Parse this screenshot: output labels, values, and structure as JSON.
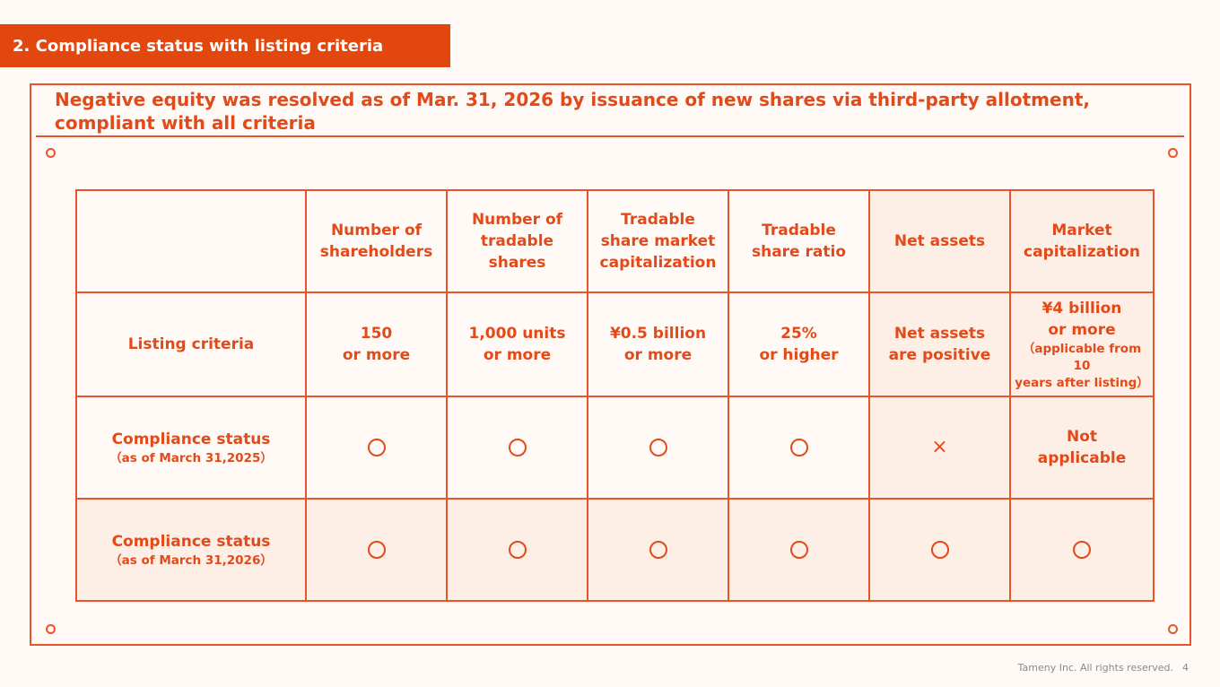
{
  "section_tab": "2. Compliance status with listing criteria",
  "headline": {
    "line1": "Negative equity was resolved as of Mar. 31, 2026 by issuance of new shares via third-party allotment,",
    "line2": "compliant with all criteria"
  },
  "table": {
    "headers": [
      {
        "l1": "Number of",
        "l2": "shareholders",
        "l3": ""
      },
      {
        "l1": "Number of",
        "l2": "tradable",
        "l3": "shares"
      },
      {
        "l1": "Tradable",
        "l2": "share market",
        "l3": "capitalization"
      },
      {
        "l1": "Tradable",
        "l2": "share ratio",
        "l3": ""
      },
      {
        "l1": "Net assets",
        "l2": "",
        "l3": ""
      },
      {
        "l1": "Market",
        "l2": "capitalization",
        "l3": ""
      }
    ],
    "criteria_row": {
      "label": "Listing criteria",
      "cells": [
        {
          "l1": "150",
          "l2": "or more"
        },
        {
          "l1": "1,000 units",
          "l2": "or more"
        },
        {
          "l1": "¥0.5 billion",
          "l2": "or more"
        },
        {
          "l1": "25%",
          "l2": "or higher"
        },
        {
          "l1": "Net assets",
          "l2": "are positive"
        },
        {
          "l1": "¥4 billion",
          "l2": "or more",
          "note1": "（applicable from 10",
          "note2": "years after listing）"
        }
      ]
    },
    "status_2025": {
      "label": "Compliance status",
      "sub": "（as of March 31,2025）",
      "cells": [
        "circle",
        "circle",
        "circle",
        "circle",
        "×",
        "Not applicable"
      ],
      "not_applicable_l1": "Not",
      "not_applicable_l2": "applicable",
      "cross": "×"
    },
    "status_2026": {
      "label": "Compliance status",
      "sub": "（as of March 31,2026）",
      "cells": [
        "circle",
        "circle",
        "circle",
        "circle",
        "circle",
        "circle"
      ]
    }
  },
  "footer": {
    "copyright": "Tameny Inc. All rights reserved.",
    "page": "4"
  },
  "colors": {
    "accent": "#e2470e",
    "tint": "#fdeee6",
    "background": "#fffaf5"
  }
}
